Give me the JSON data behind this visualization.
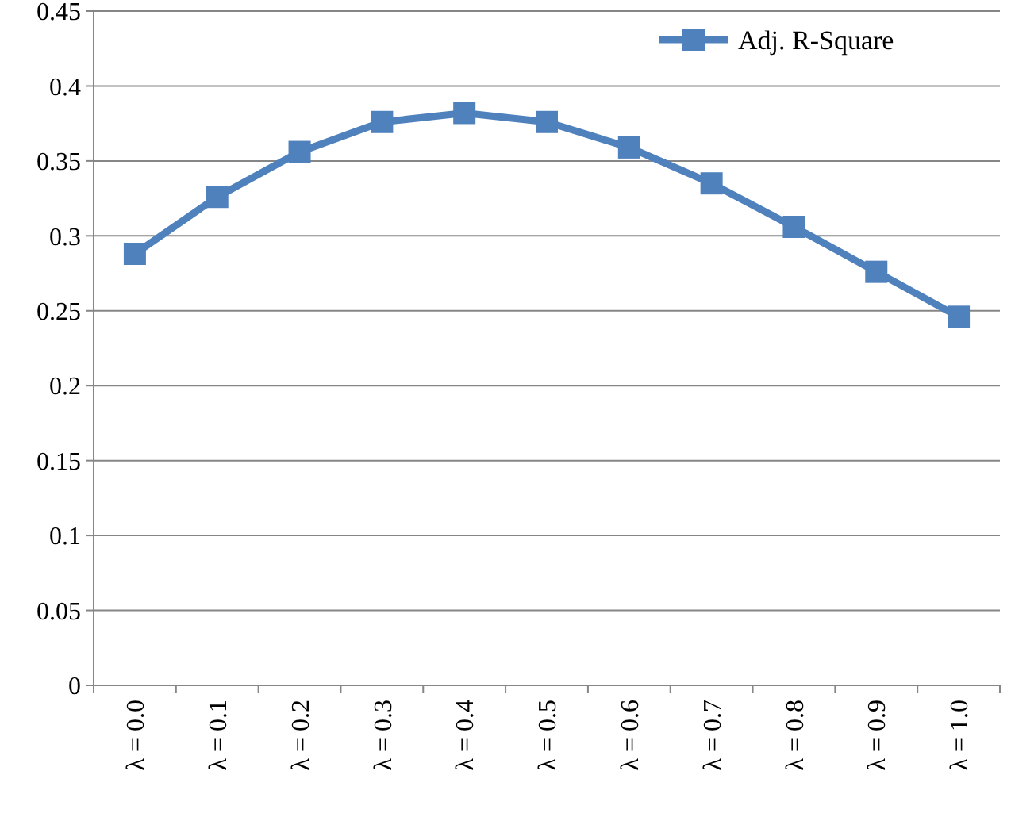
{
  "chart_data": {
    "type": "line",
    "categories": [
      "λ = 0.0",
      "λ = 0.1",
      "λ = 0.2",
      "λ = 0.3",
      "λ = 0.4",
      "λ = 0.5",
      "λ = 0.6",
      "λ = 0.7",
      "λ = 0.8",
      "λ = 0.9",
      "λ = 1.0"
    ],
    "series": [
      {
        "name": "Adj. R-Square",
        "color": "#4f81bd",
        "values": [
          0.288,
          0.326,
          0.356,
          0.376,
          0.382,
          0.376,
          0.359,
          0.335,
          0.306,
          0.276,
          0.246
        ]
      }
    ],
    "ylim": [
      0,
      0.45
    ],
    "yticks": [
      0,
      0.05,
      0.1,
      0.15,
      0.2,
      0.25,
      0.3,
      0.35,
      0.4,
      0.45
    ],
    "grid": "y",
    "legend": "top right",
    "marker": "square",
    "line_style": "solid"
  }
}
